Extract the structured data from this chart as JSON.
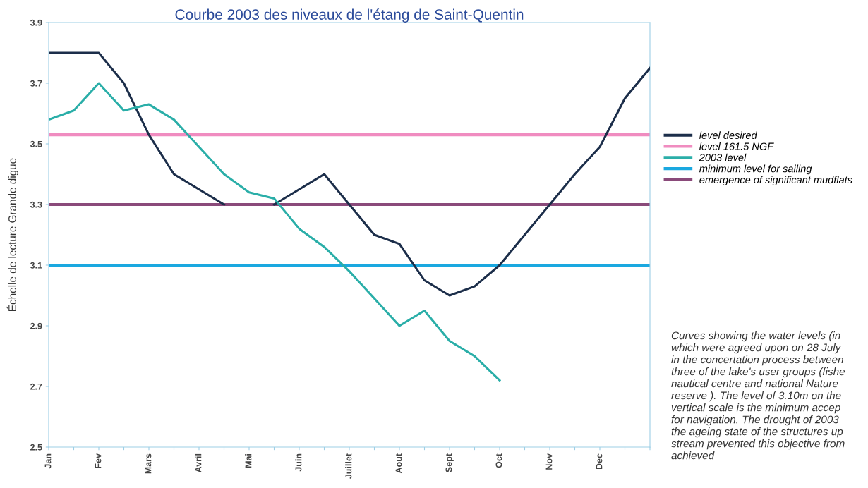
{
  "chart_data": {
    "type": "line",
    "title": "Courbe 2003 des niveaux de l'étang de Saint-Quentin",
    "ylabel": "Échelle de lecture Grande digue",
    "categories": [
      "Jan",
      null,
      "Fev",
      null,
      "Mars",
      null,
      "Avril",
      null,
      "Mai",
      null,
      "Juin",
      null,
      "Juillet",
      null,
      "Aout",
      null,
      "Sept",
      null,
      "Oct",
      null,
      "Nov",
      null,
      "Dec",
      null,
      null
    ],
    "series": [
      {
        "name": "level desired",
        "color": "#1c2e4a",
        "values": [
          3.8,
          3.8,
          3.8,
          3.7,
          3.53,
          3.4,
          3.35,
          3.3,
          null,
          3.3,
          3.35,
          3.4,
          3.3,
          3.2,
          3.17,
          3.05,
          3.0,
          3.03,
          3.1,
          3.2,
          3.3,
          3.4,
          3.49,
          3.65,
          3.75
        ]
      },
      {
        "name": "2003 level",
        "color": "#2aaea8",
        "values": [
          3.58,
          3.61,
          3.7,
          3.61,
          3.63,
          3.58,
          3.49,
          3.4,
          3.34,
          3.32,
          3.22,
          3.16,
          3.08,
          2.99,
          2.9,
          2.95,
          2.85,
          2.8,
          2.72,
          null,
          null,
          null,
          null,
          null,
          null
        ]
      }
    ],
    "ref_lines": [
      {
        "axis": "y",
        "value": 3.53,
        "label": "level 161.5 NGF",
        "color": "#f08cc0"
      },
      {
        "axis": "y",
        "value": 3.1,
        "label": "minimum level for sailing",
        "color": "#1aa8e0"
      },
      {
        "axis": "y",
        "value": 3.3,
        "label": "emergence of significant mudflats",
        "color": "#8a4a7a"
      }
    ],
    "ylim": [
      2.5,
      3.9
    ],
    "yticks": [
      2.5,
      2.7,
      2.9,
      3.1,
      3.3,
      3.5,
      3.7,
      3.9
    ],
    "grid": false,
    "legend": "right",
    "marker": "none",
    "line_style": "solid",
    "annotations": [
      "Curves showing the water levels (in\nwhich were agreed upon on 28 July\nin the concertation process between\nthree of the lake's user groups (fishe\nnautical centre and national Nature\nreserve ). The level of 3.10m on the\nvertical scale is the minimum accep\nfor navigation. The drought of 2003\nthe ageing state of the structures up\nstream prevented this objective from\nachieved"
    ]
  }
}
